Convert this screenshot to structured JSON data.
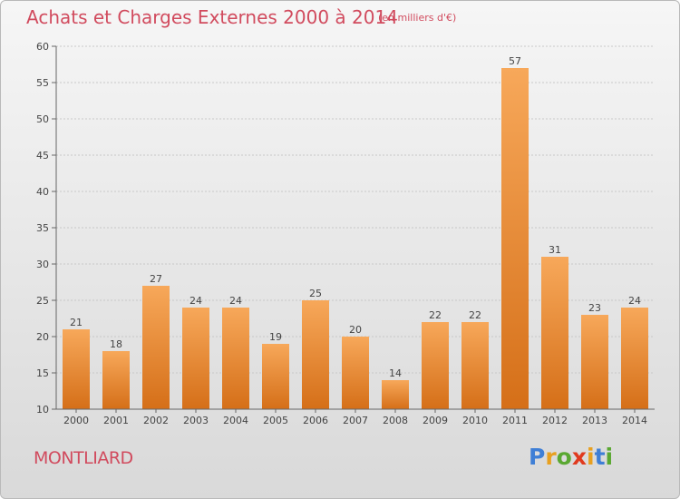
{
  "header": {
    "title": "Achats et Charges Externes 2000 à 2014",
    "subtitle": "(en milliers d'€)"
  },
  "footer": {
    "town": "MONTLIARD",
    "logo": [
      {
        "char": "P",
        "color": "#3f7fd6"
      },
      {
        "char": "r",
        "color": "#e8a020"
      },
      {
        "char": "o",
        "color": "#5aa832"
      },
      {
        "char": "x",
        "color": "#e03a1e"
      },
      {
        "char": "i",
        "color": "#e8a020"
      },
      {
        "char": "t",
        "color": "#3f7fd6"
      },
      {
        "char": "i",
        "color": "#5aa832"
      }
    ]
  },
  "colors": {
    "bar_top": "#f7a85a",
    "bar_bottom": "#d56f18",
    "text": "#444444",
    "title": "#d14b5e"
  },
  "chart_data": {
    "type": "bar",
    "categories": [
      "2000",
      "2001",
      "2002",
      "2003",
      "2004",
      "2005",
      "2006",
      "2007",
      "2008",
      "2009",
      "2010",
      "2011",
      "2012",
      "2013",
      "2014"
    ],
    "values": [
      21,
      18,
      27,
      24,
      24,
      19,
      25,
      20,
      14,
      22,
      22,
      57,
      31,
      23,
      24
    ],
    "ylim": [
      10,
      60
    ],
    "yticks": [
      10,
      15,
      20,
      25,
      30,
      35,
      40,
      45,
      50,
      55,
      60
    ],
    "grid": true
  }
}
